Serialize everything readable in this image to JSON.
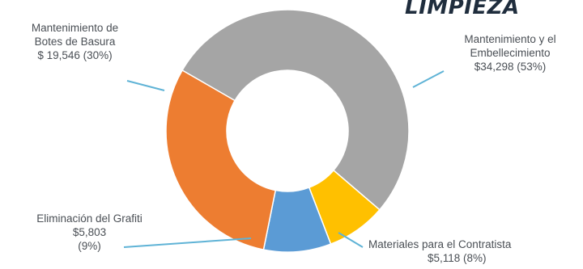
{
  "chart_data": {
    "type": "pie",
    "style": "donut",
    "title": "LIMPIEZA",
    "currency": "$",
    "slices": [
      {
        "label": "Mantenimiento y el Embellecimiento",
        "value": 34298,
        "percent": 53,
        "color": "#a5a5a5",
        "label_lines": [
          "Mantenimiento y el",
          "Embellecimiento",
          "$34,298 (53%)"
        ]
      },
      {
        "label": "Materiales para el Contratista",
        "value": 5118,
        "percent": 8,
        "color": "#ffc000",
        "label_lines": [
          "Materiales para el Contratista",
          "$5,118 (8%)"
        ]
      },
      {
        "label": "Eliminación del Grafiti",
        "value": 5803,
        "percent": 9,
        "color": "#5b9bd5",
        "label_lines": [
          "Eliminación del Grafiti",
          "$5,803",
          "(9%)"
        ]
      },
      {
        "label": "Mantenimiento de Botes de Basura",
        "value": 19546,
        "percent": 30,
        "color": "#ed7d31",
        "label_lines": [
          "Mantenimiento de",
          "Botes de Basura",
          "$ 19,546 (30%)"
        ]
      }
    ],
    "leader_line_color": "#5fb3d6"
  }
}
